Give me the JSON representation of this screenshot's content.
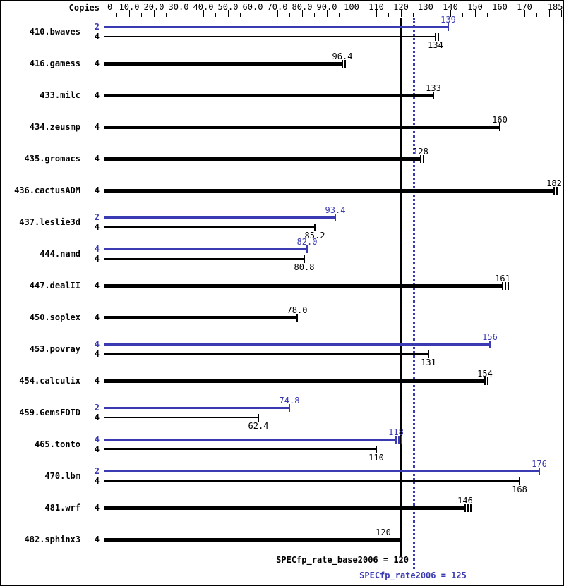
{
  "header": {
    "copies_label": "Copies"
  },
  "colors": {
    "peak": "#3a3ab2",
    "base": "#000000",
    "background": "#ffffff",
    "border": "#000000"
  },
  "axis": {
    "min": 0,
    "max": 185,
    "minor_step": 5,
    "major_step": 10,
    "tick_labels": [
      {
        "value": 0,
        "text": "0"
      },
      {
        "value": 10,
        "text": "10.0"
      },
      {
        "value": 20,
        "text": "20.0"
      },
      {
        "value": 30,
        "text": "30.0"
      },
      {
        "value": 40,
        "text": "40.0"
      },
      {
        "value": 50,
        "text": "50.0"
      },
      {
        "value": 60,
        "text": "60.0"
      },
      {
        "value": 70,
        "text": "70.0"
      },
      {
        "value": 80,
        "text": "80.0"
      },
      {
        "value": 90,
        "text": "90.0"
      },
      {
        "value": 100,
        "text": "100"
      },
      {
        "value": 110,
        "text": "110"
      },
      {
        "value": 120,
        "text": "120"
      },
      {
        "value": 130,
        "text": "130"
      },
      {
        "value": 140,
        "text": "140"
      },
      {
        "value": 150,
        "text": "150"
      },
      {
        "value": 160,
        "text": "160"
      },
      {
        "value": 170,
        "text": "170"
      },
      {
        "value": 185,
        "text": "185"
      }
    ]
  },
  "footer": {
    "base_label": "SPECfp_rate_base2006 = 120",
    "peak_label": "SPECfp_rate2006 = 125"
  },
  "chart_data": {
    "type": "bar",
    "orientation": "horizontal",
    "xlabel": "Copies",
    "xlim": [
      0,
      185
    ],
    "grid": false,
    "legend": "none",
    "reference_lines": [
      {
        "name": "SPECfp_rate_base2006",
        "value": 120,
        "style": "solid",
        "color": "#000000"
      },
      {
        "name": "SPECfp_rate2006",
        "value": 125,
        "style": "dotted",
        "color": "#3a3ab2"
      }
    ],
    "benchmarks": [
      {
        "name": "410.bwaves",
        "bars": [
          {
            "copies": "2",
            "value": 139,
            "label": "139",
            "role": "peak",
            "thick": false,
            "ticks": 1
          },
          {
            "copies": "4",
            "value": 134,
            "label": "134",
            "role": "base",
            "thick": false,
            "ticks": 2
          }
        ]
      },
      {
        "name": "416.gamess",
        "bars": [
          {
            "copies": "4",
            "value": 96.4,
            "label": "96.4",
            "role": "base",
            "thick": true,
            "ticks": 2
          }
        ]
      },
      {
        "name": "433.milc",
        "bars": [
          {
            "copies": "4",
            "value": 133,
            "label": "133",
            "role": "base",
            "thick": true,
            "ticks": 1
          }
        ]
      },
      {
        "name": "434.zeusmp",
        "bars": [
          {
            "copies": "4",
            "value": 160,
            "label": "160",
            "role": "base",
            "thick": true,
            "ticks": 1
          }
        ]
      },
      {
        "name": "435.gromacs",
        "bars": [
          {
            "copies": "4",
            "value": 128,
            "label": "128",
            "role": "base",
            "thick": true,
            "ticks": 2
          }
        ]
      },
      {
        "name": "436.cactusADM",
        "bars": [
          {
            "copies": "4",
            "value": 182,
            "label": "182",
            "role": "base",
            "thick": true,
            "ticks": 2
          }
        ]
      },
      {
        "name": "437.leslie3d",
        "bars": [
          {
            "copies": "2",
            "value": 93.4,
            "label": "93.4",
            "role": "peak",
            "thick": false,
            "ticks": 1
          },
          {
            "copies": "4",
            "value": 85.2,
            "label": "85.2",
            "role": "base",
            "thick": false,
            "ticks": 1
          }
        ]
      },
      {
        "name": "444.namd",
        "bars": [
          {
            "copies": "4",
            "value": 82.0,
            "label": "82.0",
            "role": "peak",
            "thick": false,
            "ticks": 1
          },
          {
            "copies": "4",
            "value": 80.8,
            "label": "80.8",
            "role": "base",
            "thick": false,
            "ticks": 1
          }
        ]
      },
      {
        "name": "447.dealII",
        "bars": [
          {
            "copies": "4",
            "value": 161,
            "label": "161",
            "role": "base",
            "thick": true,
            "ticks": 3
          }
        ]
      },
      {
        "name": "450.soplex",
        "bars": [
          {
            "copies": "4",
            "value": 78.0,
            "label": "78.0",
            "role": "base",
            "thick": true,
            "ticks": 1
          }
        ]
      },
      {
        "name": "453.povray",
        "bars": [
          {
            "copies": "4",
            "value": 156,
            "label": "156",
            "role": "peak",
            "thick": false,
            "ticks": 1
          },
          {
            "copies": "4",
            "value": 131,
            "label": "131",
            "role": "base",
            "thick": false,
            "ticks": 1
          }
        ]
      },
      {
        "name": "454.calculix",
        "bars": [
          {
            "copies": "4",
            "value": 154,
            "label": "154",
            "role": "base",
            "thick": true,
            "ticks": 2
          }
        ]
      },
      {
        "name": "459.GemsFDTD",
        "bars": [
          {
            "copies": "2",
            "value": 74.8,
            "label": "74.8",
            "role": "peak",
            "thick": false,
            "ticks": 1
          },
          {
            "copies": "4",
            "value": 62.4,
            "label": "62.4",
            "role": "base",
            "thick": false,
            "ticks": 1
          }
        ]
      },
      {
        "name": "465.tonto",
        "bars": [
          {
            "copies": "4",
            "value": 118,
            "label": "118",
            "role": "peak",
            "thick": false,
            "ticks": 3
          },
          {
            "copies": "4",
            "value": 110,
            "label": "110",
            "role": "base",
            "thick": false,
            "ticks": 1
          }
        ]
      },
      {
        "name": "470.lbm",
        "bars": [
          {
            "copies": "2",
            "value": 176,
            "label": "176",
            "role": "peak",
            "thick": false,
            "ticks": 1
          },
          {
            "copies": "4",
            "value": 168,
            "label": "168",
            "role": "base",
            "thick": false,
            "ticks": 1
          }
        ]
      },
      {
        "name": "481.wrf",
        "bars": [
          {
            "copies": "4",
            "value": 146,
            "label": "146",
            "role": "base",
            "thick": true,
            "ticks": 3
          }
        ]
      },
      {
        "name": "482.sphinx3",
        "bars": [
          {
            "copies": "4",
            "value": 120,
            "label": "120",
            "role": "base",
            "thick": true,
            "ticks": 1,
            "label_dx": -25
          }
        ]
      }
    ]
  }
}
